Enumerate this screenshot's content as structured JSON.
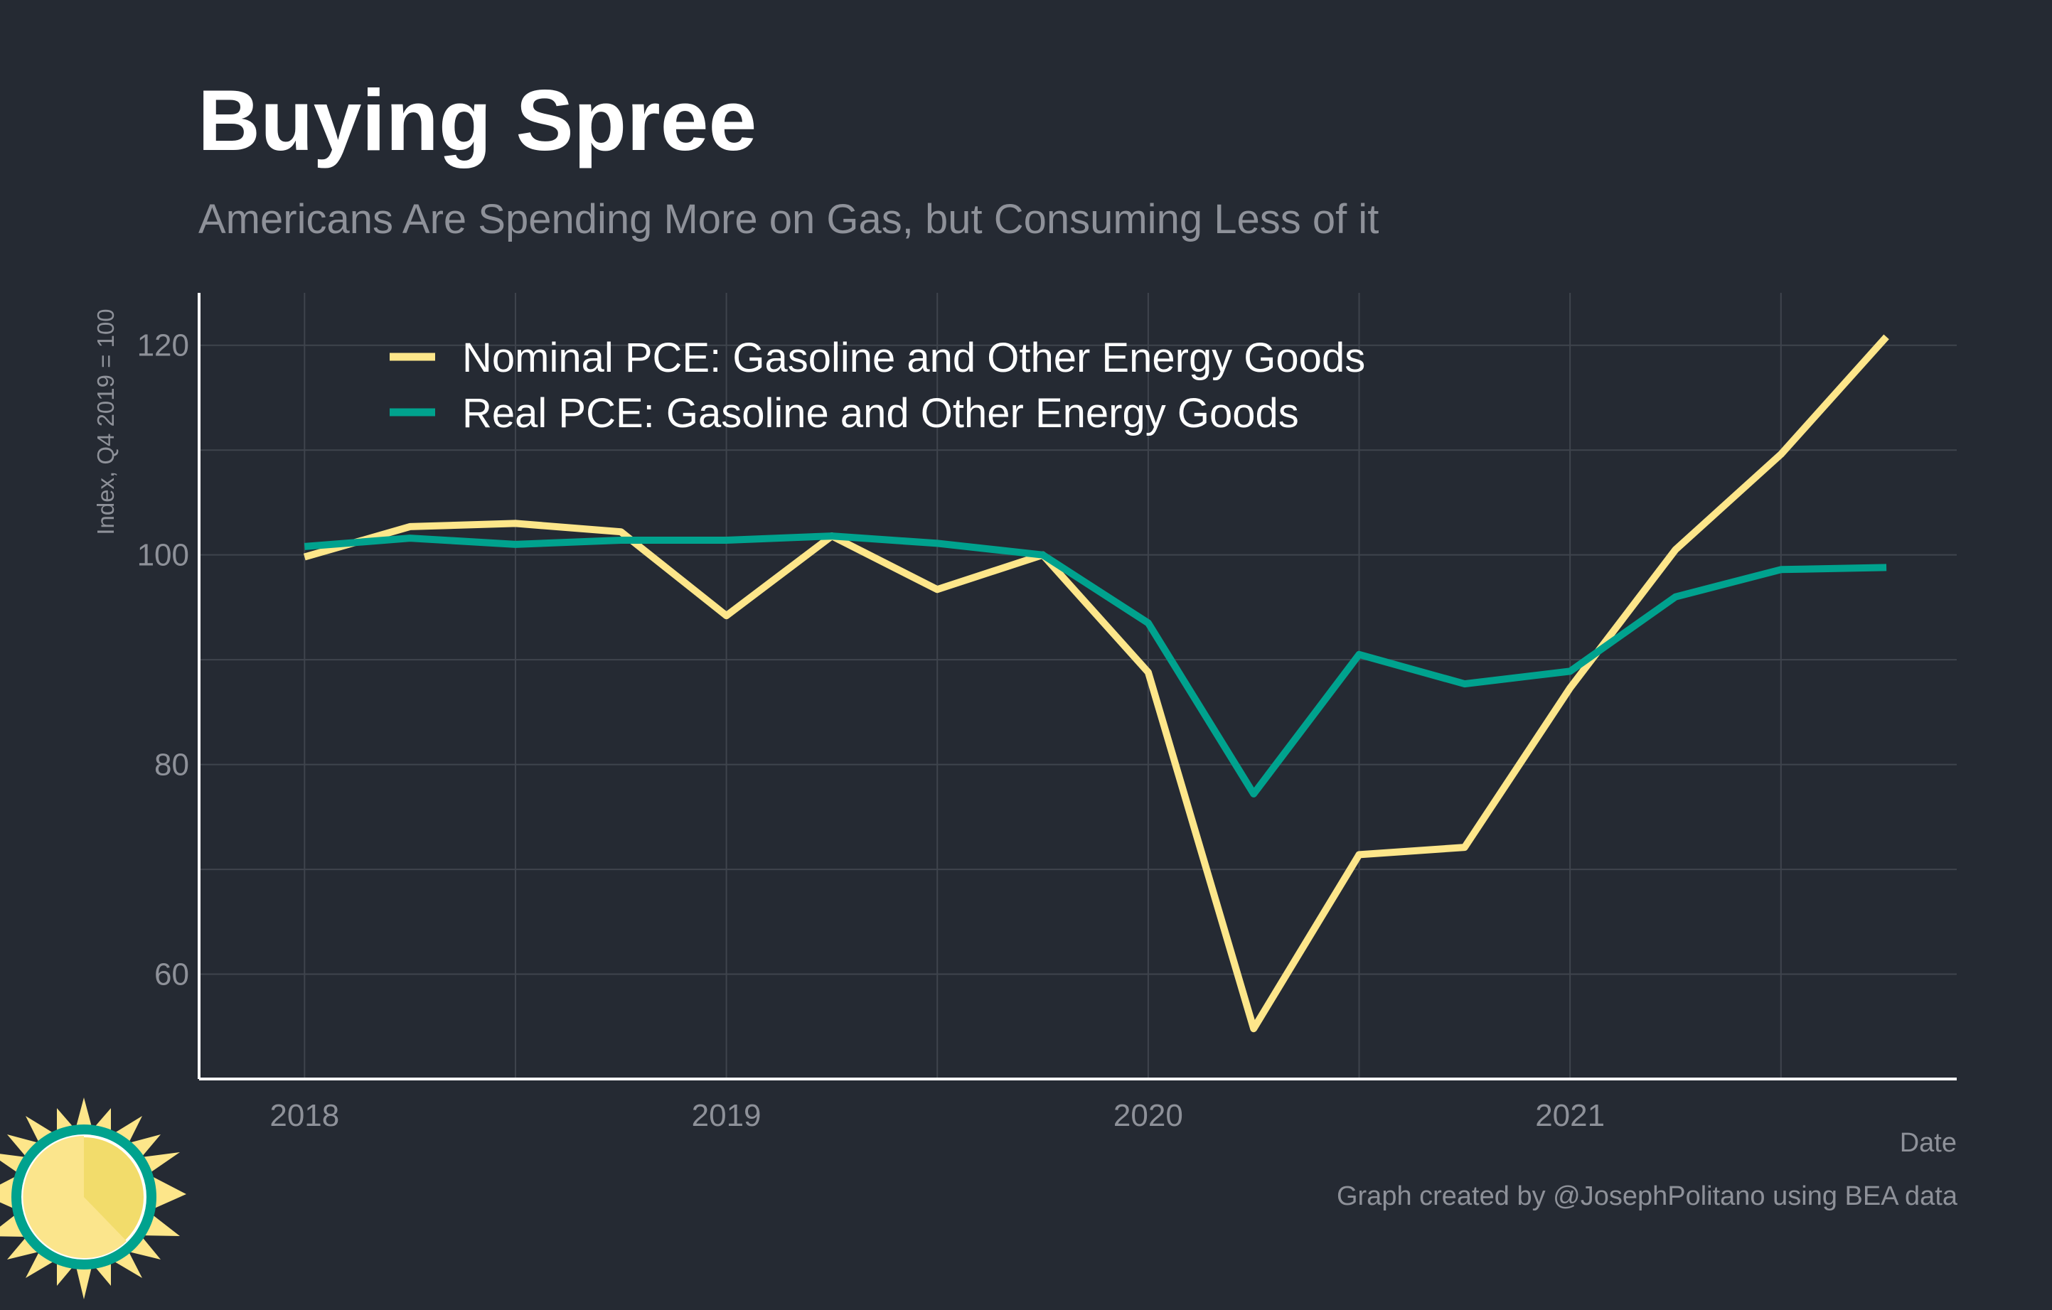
{
  "header": {
    "title": "Buying Spree",
    "subtitle": "Americans Are Spending More on Gas, but Consuming Less of it"
  },
  "footer": {
    "credit": "Graph created by @JosephPolitano using BEA data"
  },
  "colors": {
    "background": "#252a33",
    "grid": "#3f444d",
    "axis": "#ffffff",
    "text_muted": "#8e9199",
    "nominal": "#fde68a",
    "real": "#00a28e"
  },
  "logo": {
    "icon": "sun-icon"
  },
  "chart_data": {
    "type": "line",
    "title": "",
    "xlabel": "Date",
    "ylabel": "Index, Q4 2019 = 100",
    "x_ticks": [
      "2018",
      "2019",
      "2020",
      "2021"
    ],
    "y_ticks": [
      60,
      80,
      100,
      120
    ],
    "ylim": [
      50,
      125
    ],
    "x_range": [
      "2017-10",
      "2021-12"
    ],
    "grid": true,
    "legend_position": "top-left",
    "x": [
      "2018-01",
      "2018-04",
      "2018-07",
      "2018-10",
      "2019-01",
      "2019-04",
      "2019-07",
      "2019-10",
      "2020-01",
      "2020-04",
      "2020-07",
      "2020-10",
      "2021-01",
      "2021-04",
      "2021-07",
      "2021-10"
    ],
    "series": [
      {
        "name": "Nominal PCE: Gasoline and Other Energy Goods",
        "color": "#fde68a",
        "values": [
          99.8,
          102.7,
          103.0,
          102.2,
          94.2,
          101.8,
          96.7,
          100.0,
          88.8,
          54.8,
          71.4,
          72.1,
          87.3,
          100.5,
          109.6,
          120.8
        ]
      },
      {
        "name": "Real PCE: Gasoline and Other Energy Goods",
        "color": "#00a28e",
        "values": [
          100.8,
          101.6,
          101.0,
          101.4,
          101.4,
          101.8,
          101.1,
          100.0,
          93.5,
          77.2,
          90.5,
          87.7,
          88.9,
          96.0,
          98.6,
          98.8
        ]
      }
    ]
  }
}
